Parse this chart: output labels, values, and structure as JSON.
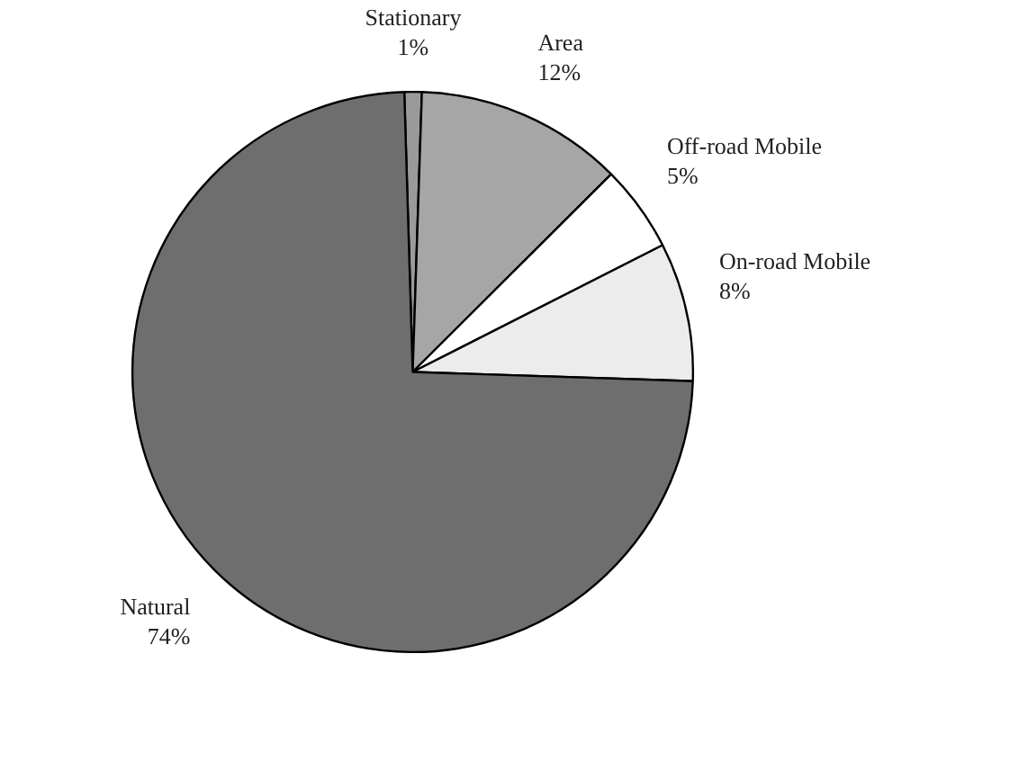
{
  "chart_data": {
    "type": "pie",
    "categories": [
      "Stationary",
      "Area",
      "Off-road Mobile",
      "On-road Mobile",
      "Natural"
    ],
    "values": [
      1,
      12,
      5,
      8,
      74
    ],
    "value_labels": [
      "1%",
      "12%",
      "5%",
      "8%",
      "74%"
    ],
    "colors": [
      "#9a9a9a",
      "#a6a6a6",
      "#ffffff",
      "#ececec",
      "#6e6e6e"
    ]
  }
}
